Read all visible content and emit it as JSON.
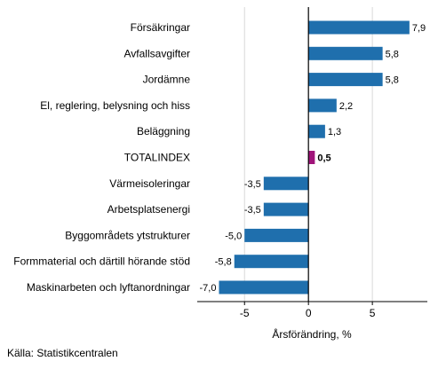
{
  "chart_data": {
    "type": "bar",
    "orientation": "horizontal",
    "categories": [
      "Försäkringar",
      "Avfallsavgifter",
      "Jordämne",
      "El, reglering, belysning och hiss",
      "Beläggning",
      "TOTALINDEX",
      "Värmeisoleringar",
      "Arbetsplatsenergi",
      "Byggområdets ytstrukturer",
      "Formmaterial och därtill hörande stöd",
      "Maskinarbeten och lyftanordningar"
    ],
    "values": [
      7.9,
      5.8,
      5.8,
      2.2,
      1.3,
      0.5,
      -3.5,
      -3.5,
      -5.0,
      -5.8,
      -7.0
    ],
    "value_labels": [
      "7,9",
      "5,8",
      "5,8",
      "2,2",
      "1,3",
      "0,5",
      "-3,5",
      "-3,5",
      "-5,0",
      "-5,8",
      "-7,0"
    ],
    "highlight": "TOTALINDEX",
    "xlabel": "Årsförändring, %",
    "xlim": [
      -8.7,
      9.3
    ],
    "xticks": [
      -5,
      0,
      5
    ],
    "xtick_labels": [
      "-5",
      "0",
      "5"
    ],
    "grid": "vertical",
    "colors": {
      "bar": "#1f6fad",
      "highlight": "#a0147a",
      "grid": "#d9d9d9",
      "zero_line": "#000000"
    }
  },
  "source": "Källa: Statistikcentralen"
}
